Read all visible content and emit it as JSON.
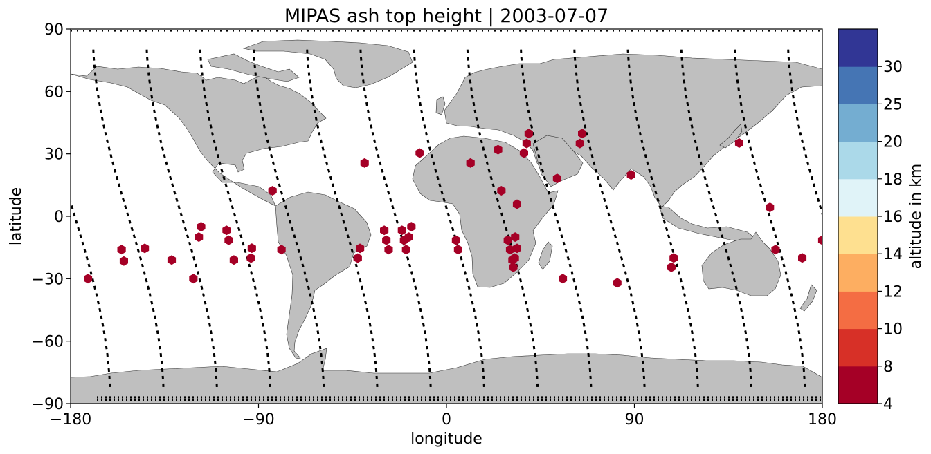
{
  "chart_data": {
    "type": "scatter",
    "title": "MIPAS ash top height | 2003-07-07",
    "xlabel": "longitude",
    "ylabel": "latitude",
    "xlim": [
      -180,
      180
    ],
    "ylim": [
      -90,
      90
    ],
    "xticks": [
      {
        "value": -180,
        "label": "−180"
      },
      {
        "value": -90,
        "label": "−90"
      },
      {
        "value": 0,
        "label": "0"
      },
      {
        "value": 90,
        "label": "90"
      },
      {
        "value": 180,
        "label": "180"
      }
    ],
    "yticks": [
      {
        "value": -90,
        "label": "−90"
      },
      {
        "value": -60,
        "label": "−60"
      },
      {
        "value": -30,
        "label": "−30"
      },
      {
        "value": 0,
        "label": "0"
      },
      {
        "value": 30,
        "label": "30"
      },
      {
        "value": 60,
        "label": "60"
      },
      {
        "value": 90,
        "label": "90"
      }
    ],
    "land_color": "#bfbfbf",
    "track_color": "#000000",
    "marker_color": "#a50026",
    "marker_shape": "hexagon",
    "ash_detections": [
      [
        -171.7,
        -30
      ],
      [
        -155.6,
        -16
      ],
      [
        -154.5,
        -21.5
      ],
      [
        -144.5,
        -15.4
      ],
      [
        -131.6,
        -21
      ],
      [
        -121.2,
        -30
      ],
      [
        -118.6,
        -10
      ],
      [
        -117.5,
        -5
      ],
      [
        -105.3,
        -6.7
      ],
      [
        -104.3,
        -11.5
      ],
      [
        -101.8,
        -21
      ],
      [
        -93.6,
        -20.1
      ],
      [
        -93.2,
        -15.3
      ],
      [
        -83.3,
        12.3
      ],
      [
        -79,
        -16
      ],
      [
        -42.5,
        -20.1
      ],
      [
        -41.4,
        -15.4
      ],
      [
        -39.2,
        25.6
      ],
      [
        -29.8,
        -6.7
      ],
      [
        -28.8,
        -11.5
      ],
      [
        -27.7,
        -16
      ],
      [
        -21.3,
        -6.7
      ],
      [
        -20.3,
        -11.5
      ],
      [
        -19.3,
        -16
      ],
      [
        -18,
        -10
      ],
      [
        -16.8,
        -5
      ],
      [
        -12.8,
        30.4
      ],
      [
        4.6,
        -11.5
      ],
      [
        5.6,
        -16
      ],
      [
        11.5,
        25.6
      ],
      [
        24.7,
        32
      ],
      [
        26.3,
        12.3
      ],
      [
        29.4,
        -11.5
      ],
      [
        30.5,
        -16
      ],
      [
        31.6,
        -21
      ],
      [
        32,
        -24.5
      ],
      [
        32.9,
        -10
      ],
      [
        33.8,
        5.8
      ],
      [
        33.8,
        -15.4
      ],
      [
        32.7,
        -20.1
      ],
      [
        37.1,
        30.4
      ],
      [
        38.4,
        35
      ],
      [
        39.4,
        39.8
      ],
      [
        53,
        18.2
      ],
      [
        55.7,
        -30
      ],
      [
        63.9,
        35
      ],
      [
        65,
        39.8
      ],
      [
        81.8,
        -32
      ],
      [
        88.4,
        19.9
      ],
      [
        107.7,
        -24.5
      ],
      [
        108.8,
        -20
      ],
      [
        140.2,
        35.2
      ],
      [
        154.9,
        4.3
      ],
      [
        157.6,
        -16
      ],
      [
        170.4,
        -20
      ],
      [
        180,
        -11.5
      ]
    ],
    "colorbar": {
      "label": "altitude in km",
      "bounds": [
        4,
        8,
        10,
        12,
        14,
        16,
        18,
        20,
        25,
        30
      ],
      "colors": [
        "#a50026",
        "#d73027",
        "#f46d43",
        "#fdae61",
        "#fee090",
        "#e0f3f8",
        "#abd9e9",
        "#74add1",
        "#4575b4",
        "#313695"
      ]
    }
  }
}
